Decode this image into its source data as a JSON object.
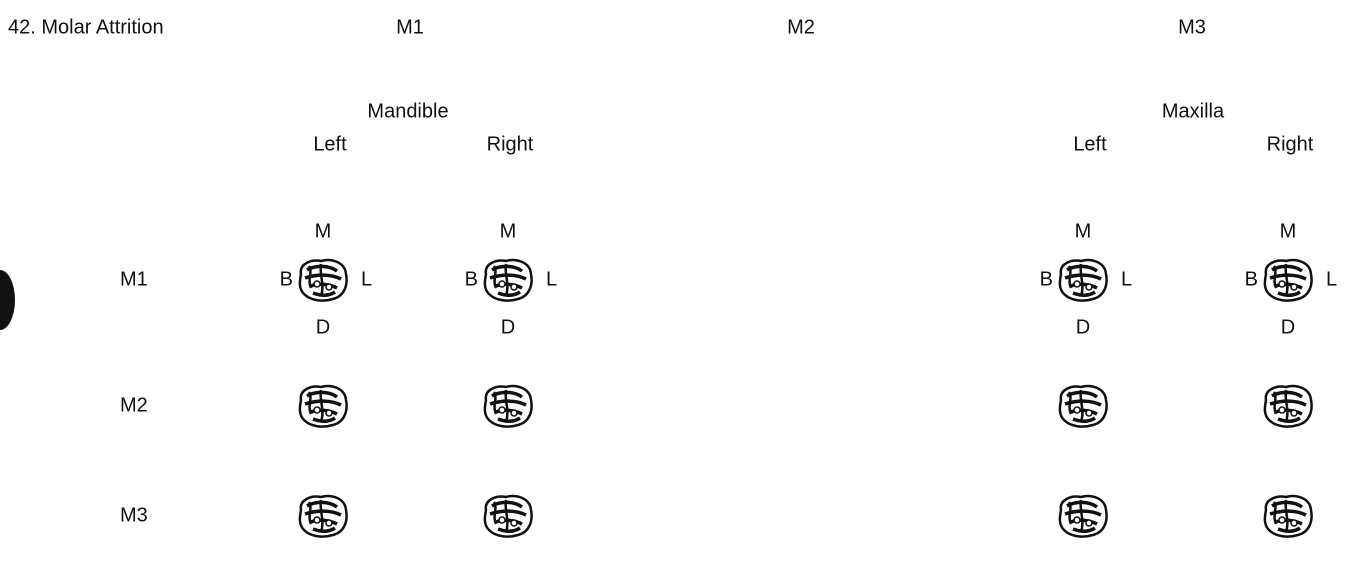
{
  "header": {
    "title": "42. Molar Attrition",
    "columns": [
      "M1",
      "M2",
      "M3"
    ]
  },
  "groups": [
    {
      "name": "Mandible",
      "sides": [
        "Left",
        "Right"
      ]
    },
    {
      "name": "Maxilla",
      "sides": [
        "Left",
        "Right"
      ]
    }
  ],
  "rows": [
    "M1",
    "M2",
    "M3"
  ],
  "orientation": {
    "top": "M",
    "bottom": "D",
    "left": "B",
    "right": "L"
  }
}
